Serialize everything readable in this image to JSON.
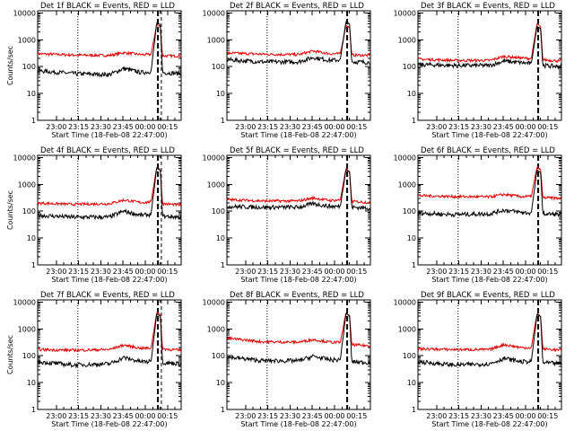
{
  "colors": {
    "events": "#000000",
    "lld": "#e00000"
  },
  "chart_data": [
    {
      "type": "line",
      "title": "Det 1f BLACK = Events, RED = LLD",
      "xlabel": "Start Time (18-Feb-08 22:47:00)",
      "ylabel": "Counts/sec",
      "xticks": [
        "23:00",
        "23:15",
        "23:30",
        "23:45",
        "00:00",
        "00:15"
      ],
      "yticks": [
        "1",
        "10",
        "100",
        "1000",
        "10000"
      ],
      "ylim": [
        1,
        12000
      ],
      "log_y": true,
      "label_ticks": true,
      "series": [
        {
          "color": "red",
          "values": [
            [
              0,
              300
            ],
            [
              0.25,
              270
            ],
            [
              0.5,
              260
            ],
            [
              0.6,
              330
            ],
            [
              0.72,
              280
            ],
            [
              0.79,
              280
            ],
            [
              0.83,
              3800
            ],
            [
              0.855,
              3000
            ],
            [
              0.87,
              250
            ],
            [
              1,
              250
            ]
          ]
        },
        {
          "color": "black",
          "values": [
            [
              0,
              70
            ],
            [
              0.25,
              55
            ],
            [
              0.5,
              50
            ],
            [
              0.6,
              85
            ],
            [
              0.72,
              60
            ],
            [
              0.79,
              65
            ],
            [
              0.83,
              4400
            ],
            [
              0.855,
              3500
            ],
            [
              0.87,
              60
            ],
            [
              1,
              55
            ]
          ]
        }
      ]
    },
    {
      "type": "line",
      "title": "Det 2f BLACK = Events, RED = LLD",
      "xlabel": "Start Time (18-Feb-08 22:47:00)",
      "ylabel": "",
      "xticks": [
        "23:00",
        "23:15",
        "23:30",
        "23:45",
        "00:00",
        "00:15"
      ],
      "yticks": [
        "1",
        "10",
        "100",
        "1000",
        "10000"
      ],
      "ylim": [
        1,
        12000
      ],
      "log_y": true,
      "label_ticks": true,
      "series": [
        {
          "color": "red",
          "values": [
            [
              0,
              320
            ],
            [
              0.25,
              290
            ],
            [
              0.5,
              280
            ],
            [
              0.6,
              380
            ],
            [
              0.72,
              300
            ],
            [
              0.79,
              300
            ],
            [
              0.83,
              3500
            ],
            [
              0.855,
              2800
            ],
            [
              0.87,
              270
            ],
            [
              1,
              260
            ]
          ]
        },
        {
          "color": "black",
          "values": [
            [
              0,
              180
            ],
            [
              0.25,
              150
            ],
            [
              0.5,
              150
            ],
            [
              0.6,
              220
            ],
            [
              0.72,
              170
            ],
            [
              0.79,
              180
            ],
            [
              0.83,
              4800
            ],
            [
              0.855,
              3800
            ],
            [
              0.87,
              150
            ],
            [
              1,
              145
            ]
          ]
        }
      ]
    },
    {
      "type": "line",
      "title": "Det 3f BLACK = Events, RED = LLD",
      "xlabel": "Start Time (18-Feb-08 22:47:00)",
      "ylabel": "",
      "xticks": [
        "23:00",
        "23:15",
        "23:30",
        "23:45",
        "00:00",
        "00:15"
      ],
      "yticks": [
        "1",
        "10",
        "100",
        "1000",
        "10000"
      ],
      "ylim": [
        1,
        12000
      ],
      "log_y": true,
      "label_ticks": true,
      "series": [
        {
          "color": "red",
          "values": [
            [
              0,
              190
            ],
            [
              0.25,
              170
            ],
            [
              0.5,
              170
            ],
            [
              0.6,
              240
            ],
            [
              0.72,
              210
            ],
            [
              0.79,
              200
            ],
            [
              0.83,
              4000
            ],
            [
              0.855,
              3000
            ],
            [
              0.87,
              180
            ],
            [
              1,
              160
            ]
          ]
        },
        {
          "color": "black",
          "values": [
            [
              0,
              120
            ],
            [
              0.25,
              110
            ],
            [
              0.5,
              110
            ],
            [
              0.6,
              160
            ],
            [
              0.72,
              140
            ],
            [
              0.79,
              130
            ],
            [
              0.83,
              3200
            ],
            [
              0.855,
              2600
            ],
            [
              0.87,
              110
            ],
            [
              1,
              100
            ]
          ]
        }
      ]
    },
    {
      "type": "line",
      "title": "Det 4f BLACK = Events, RED = LLD",
      "xlabel": "Start Time (18-Feb-08 22:47:00)",
      "ylabel": "Counts/sec",
      "xticks": [
        "23:00",
        "23:15",
        "23:30",
        "23:45",
        "00:00",
        "00:15"
      ],
      "yticks": [
        "1",
        "10",
        "100",
        "1000",
        "10000"
      ],
      "ylim": [
        1,
        12000
      ],
      "log_y": true,
      "label_ticks": true,
      "series": [
        {
          "color": "red",
          "values": [
            [
              0,
              200
            ],
            [
              0.25,
              180
            ],
            [
              0.5,
              190
            ],
            [
              0.6,
              260
            ],
            [
              0.72,
              210
            ],
            [
              0.79,
              220
            ],
            [
              0.83,
              4500
            ],
            [
              0.855,
              3300
            ],
            [
              0.87,
              190
            ],
            [
              1,
              170
            ]
          ]
        },
        {
          "color": "black",
          "values": [
            [
              0,
              70
            ],
            [
              0.25,
              60
            ],
            [
              0.5,
              60
            ],
            [
              0.6,
              100
            ],
            [
              0.72,
              70
            ],
            [
              0.79,
              75
            ],
            [
              0.83,
              4200
            ],
            [
              0.855,
              3300
            ],
            [
              0.87,
              65
            ],
            [
              1,
              60
            ]
          ]
        }
      ]
    },
    {
      "type": "line",
      "title": "Det 5f BLACK = Events, RED = LLD",
      "xlabel": "Start Time (18-Feb-08 22:47:00)",
      "ylabel": "",
      "xticks": [
        "23:00",
        "23:15",
        "23:30",
        "23:45",
        "00:00",
        "00:15"
      ],
      "yticks": [
        "1",
        "10",
        "100",
        "1000",
        "10000"
      ],
      "ylim": [
        1,
        12000
      ],
      "log_y": true,
      "label_ticks": true,
      "series": [
        {
          "color": "red",
          "values": [
            [
              0,
              270
            ],
            [
              0.25,
              240
            ],
            [
              0.5,
              240
            ],
            [
              0.6,
              310
            ],
            [
              0.72,
              250
            ],
            [
              0.79,
              260
            ],
            [
              0.83,
              3800
            ],
            [
              0.855,
              2900
            ],
            [
              0.87,
              230
            ],
            [
              1,
              210
            ]
          ]
        },
        {
          "color": "black",
          "values": [
            [
              0,
              150
            ],
            [
              0.25,
              140
            ],
            [
              0.5,
              140
            ],
            [
              0.6,
              190
            ],
            [
              0.72,
              150
            ],
            [
              0.79,
              150
            ],
            [
              0.83,
              3600
            ],
            [
              0.855,
              2800
            ],
            [
              0.87,
              140
            ],
            [
              1,
              130
            ]
          ]
        }
      ]
    },
    {
      "type": "line",
      "title": "Det 6f BLACK = Events, RED = LLD",
      "xlabel": "Start Time (18-Feb-08 22:47:00)",
      "ylabel": "",
      "xticks": [
        "23:00",
        "23:15",
        "23:30",
        "23:45",
        "00:00",
        "00:15"
      ],
      "yticks": [
        "1",
        "10",
        "100",
        "1000",
        "10000"
      ],
      "ylim": [
        1,
        12000
      ],
      "log_y": true,
      "label_ticks": true,
      "series": [
        {
          "color": "red",
          "values": [
            [
              0,
              380
            ],
            [
              0.25,
              350
            ],
            [
              0.5,
              340
            ],
            [
              0.6,
              420
            ],
            [
              0.72,
              350
            ],
            [
              0.79,
              350
            ],
            [
              0.83,
              4500
            ],
            [
              0.855,
              3500
            ],
            [
              0.87,
              320
            ],
            [
              1,
              300
            ]
          ]
        },
        {
          "color": "black",
          "values": [
            [
              0,
              85
            ],
            [
              0.25,
              75
            ],
            [
              0.5,
              80
            ],
            [
              0.6,
              110
            ],
            [
              0.72,
              90
            ],
            [
              0.79,
              85
            ],
            [
              0.83,
              3400
            ],
            [
              0.855,
              2800
            ],
            [
              0.87,
              80
            ],
            [
              1,
              75
            ]
          ]
        }
      ]
    },
    {
      "type": "line",
      "title": "Det 7f BLACK = Events, RED = LLD",
      "xlabel": "Start Time (18-Feb-08 22:47:00)",
      "ylabel": "Counts/sec",
      "xticks": [
        "23:00",
        "23:15",
        "23:30",
        "23:45",
        "00:00",
        "00:15"
      ],
      "yticks": [
        "1",
        "10",
        "100",
        "1000",
        "10000"
      ],
      "ylim": [
        1,
        12000
      ],
      "log_y": true,
      "label_ticks": true,
      "series": [
        {
          "color": "red",
          "values": [
            [
              0,
              170
            ],
            [
              0.25,
              160
            ],
            [
              0.5,
              170
            ],
            [
              0.6,
              250
            ],
            [
              0.72,
              190
            ],
            [
              0.79,
              190
            ],
            [
              0.83,
              4200
            ],
            [
              0.855,
              3200
            ],
            [
              0.87,
              180
            ],
            [
              1,
              160
            ]
          ]
        },
        {
          "color": "black",
          "values": [
            [
              0,
              60
            ],
            [
              0.25,
              45
            ],
            [
              0.5,
              50
            ],
            [
              0.6,
              85
            ],
            [
              0.72,
              60
            ],
            [
              0.79,
              60
            ],
            [
              0.83,
              3800
            ],
            [
              0.855,
              3000
            ],
            [
              0.87,
              55
            ],
            [
              1,
              50
            ]
          ]
        }
      ]
    },
    {
      "type": "line",
      "title": "Det 8f BLACK = Events, RED = LLD",
      "xlabel": "Start Time (18-Feb-08 22:47:00)",
      "ylabel": "",
      "xticks": [
        "23:00",
        "23:15",
        "23:30",
        "23:45",
        "00:00",
        "00:15"
      ],
      "yticks": [
        "1",
        "10",
        "100",
        "1000",
        "10000"
      ],
      "ylim": [
        1,
        12000
      ],
      "log_y": true,
      "label_ticks": true,
      "series": [
        {
          "color": "red",
          "values": [
            [
              0,
              450
            ],
            [
              0.25,
              330
            ],
            [
              0.5,
              320
            ],
            [
              0.6,
              400
            ],
            [
              0.72,
              320
            ],
            [
              0.79,
              310
            ],
            [
              0.83,
              4000
            ],
            [
              0.855,
              3000
            ],
            [
              0.87,
              260
            ],
            [
              1,
              230
            ]
          ]
        },
        {
          "color": "black",
          "values": [
            [
              0,
              90
            ],
            [
              0.25,
              65
            ],
            [
              0.5,
              65
            ],
            [
              0.6,
              95
            ],
            [
              0.72,
              70
            ],
            [
              0.79,
              70
            ],
            [
              0.83,
              3800
            ],
            [
              0.855,
              3000
            ],
            [
              0.87,
              60
            ],
            [
              1,
              55
            ]
          ]
        }
      ]
    },
    {
      "type": "line",
      "title": "Det 9f BLACK = Events, RED = LLD",
      "xlabel": "Start Time (18-Feb-08 22:47:00)",
      "ylabel": "",
      "xticks": [
        "23:00",
        "23:15",
        "23:30",
        "23:45",
        "00:00",
        "00:15"
      ],
      "yticks": [
        "1",
        "10",
        "100",
        "1000",
        "10000"
      ],
      "ylim": [
        1,
        12000
      ],
      "log_y": true,
      "label_ticks": true,
      "series": [
        {
          "color": "red",
          "values": [
            [
              0,
              180
            ],
            [
              0.25,
              170
            ],
            [
              0.5,
              170
            ],
            [
              0.6,
              260
            ],
            [
              0.72,
              200
            ],
            [
              0.79,
              200
            ],
            [
              0.83,
              3800
            ],
            [
              0.855,
              2900
            ],
            [
              0.87,
              180
            ],
            [
              1,
              160
            ]
          ]
        },
        {
          "color": "black",
          "values": [
            [
              0,
              60
            ],
            [
              0.25,
              45
            ],
            [
              0.5,
              50
            ],
            [
              0.6,
              80
            ],
            [
              0.72,
              60
            ],
            [
              0.79,
              60
            ],
            [
              0.83,
              3500
            ],
            [
              0.855,
              2800
            ],
            [
              0.87,
              55
            ],
            [
              1,
              50
            ]
          ]
        }
      ]
    }
  ]
}
